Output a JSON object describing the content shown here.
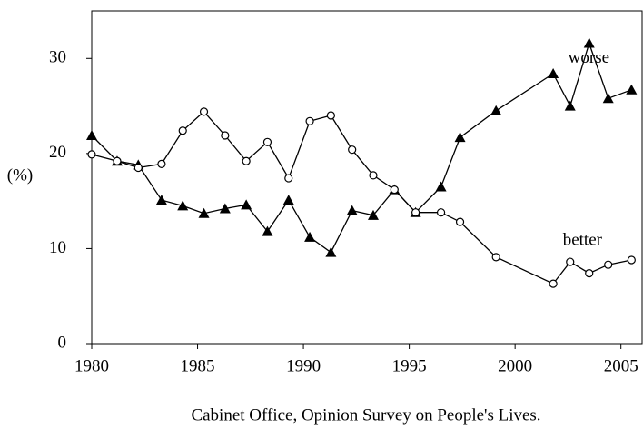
{
  "chart_data": {
    "type": "line",
    "ylabel": "(%)",
    "source": "Cabinet Office, Opinion Survey on People's Lives.",
    "xlim": [
      1980,
      2006
    ],
    "xticks": [
      1980,
      1985,
      1990,
      1995,
      2000,
      2005
    ],
    "ylim": [
      0,
      35
    ],
    "yticks": [
      0,
      10,
      20,
      30
    ],
    "grid": false,
    "series": [
      {
        "name": "worse",
        "color": "#000000",
        "marker": "triangle",
        "x": [
          1980,
          1981.2,
          1982.2,
          1983.3,
          1984.3,
          1985.3,
          1986.3,
          1987.3,
          1988.3,
          1989.3,
          1990.3,
          1991.3,
          1992.3,
          1993.3,
          1994.3,
          1995.3,
          1996.5,
          1997.4,
          1999.1,
          2001.8,
          2002.6,
          2003.5,
          2004.4,
          2005.5
        ],
        "values": [
          21.9,
          19.2,
          18.8,
          15.1,
          14.5,
          13.7,
          14.2,
          14.6,
          11.8,
          15.1,
          11.2,
          9.6,
          14.0,
          13.5,
          16.2,
          13.8,
          16.5,
          21.7,
          24.5,
          28.4,
          25.0,
          31.6,
          25.8,
          26.7
        ]
      },
      {
        "name": "better",
        "color": "#000000",
        "marker": "circle",
        "x": [
          1980,
          1981.2,
          1982.2,
          1983.3,
          1984.3,
          1985.3,
          1986.3,
          1987.3,
          1988.3,
          1989.3,
          1990.3,
          1991.3,
          1992.3,
          1993.3,
          1994.3,
          1995.3,
          1996.5,
          1997.4,
          1999.1,
          2001.8,
          2002.6,
          2003.5,
          2004.4,
          2005.5
        ],
        "values": [
          19.9,
          19.2,
          18.5,
          18.9,
          22.4,
          24.4,
          21.9,
          19.2,
          21.2,
          17.4,
          23.4,
          24.0,
          20.4,
          17.7,
          16.2,
          13.8,
          13.8,
          12.8,
          9.1,
          6.3,
          8.6,
          7.4,
          8.3,
          8.8
        ]
      }
    ]
  }
}
